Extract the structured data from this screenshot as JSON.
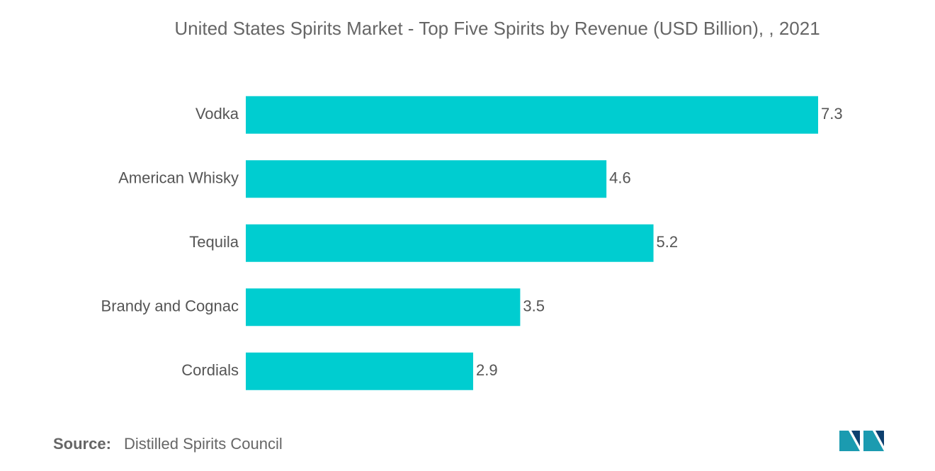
{
  "chart_data": {
    "type": "bar",
    "orientation": "horizontal",
    "title": "United States Spirits Market - Top Five Spirits by Revenue (USD Billion), , 2021",
    "categories": [
      "Vodka",
      "American Whisky",
      "Tequila",
      "Brandy and Cognac",
      "Cordials"
    ],
    "values": [
      7.3,
      4.6,
      5.2,
      3.5,
      2.9
    ],
    "color": "#00cdd0",
    "source": {
      "label": "Source:",
      "text": "Distilled Spirits Council"
    }
  }
}
